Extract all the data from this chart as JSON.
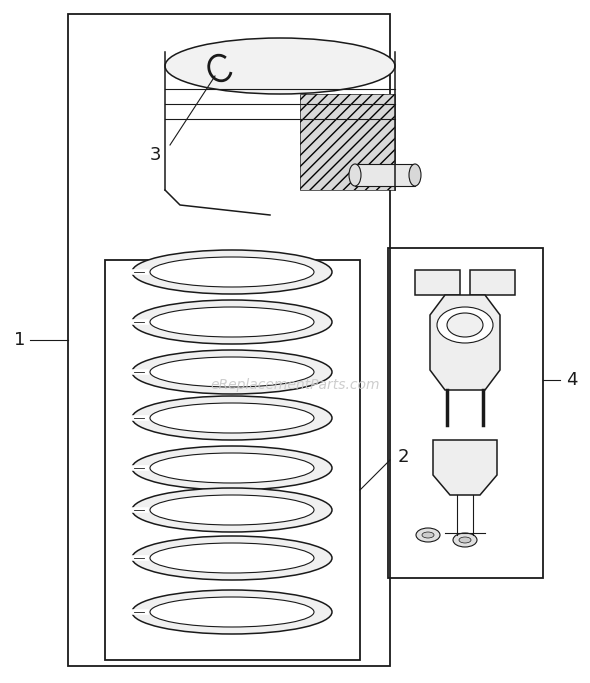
{
  "bg_color": "#ffffff",
  "line_color": "#1a1a1a",
  "watermark_text": "eReplacementParts.com",
  "watermark_color": "#c8c8c8",
  "watermark_fontsize": 10,
  "label_fontsize": 13
}
